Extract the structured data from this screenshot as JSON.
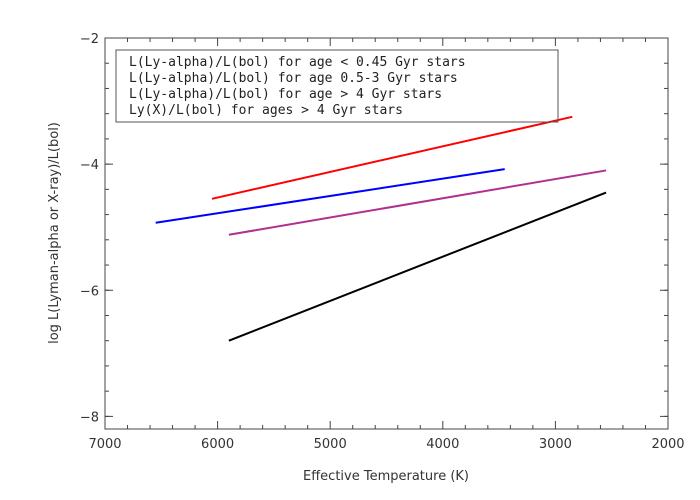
{
  "chart_data": {
    "type": "line",
    "title": "",
    "xlabel": "Effective Temperature (K)",
    "ylabel": "log L(Lyman-alpha or X-ray)/L(bol)",
    "xlim": [
      7000,
      2000
    ],
    "ylim": [
      -8.2,
      -2
    ],
    "x_reversed": true,
    "grid": false,
    "legend_position": "top-left",
    "x_ticks": [
      7000,
      6000,
      5000,
      4000,
      3000,
      2000
    ],
    "y_ticks": [
      -8,
      -6,
      -4,
      -2
    ],
    "legend_color": "",
    "series": [
      {
        "name": "L(Ly-alpha)/L(bol) for age < 0.45 Gyr stars",
        "color": "#ff0000",
        "x": [
          6050,
          2850
        ],
        "y": [
          -4.55,
          -3.25
        ]
      },
      {
        "name": "L(Ly-alpha)/L(bol) for age 0.5-3 Gyr stars",
        "color": "#0000ff",
        "x": [
          6550,
          3450
        ],
        "y": [
          -4.93,
          -4.08
        ]
      },
      {
        "name": "L(Ly-alpha)/L(bol) for age > 4 Gyr stars",
        "color": "#b03090",
        "x": [
          5900,
          2550
        ],
        "y": [
          -5.12,
          -4.1
        ]
      },
      {
        "name": "Ly(X)/L(bol) for ages > 4 Gyr stars",
        "color": "#000000",
        "x": [
          5900,
          2550
        ],
        "y": [
          -6.8,
          -4.45
        ]
      }
    ]
  }
}
